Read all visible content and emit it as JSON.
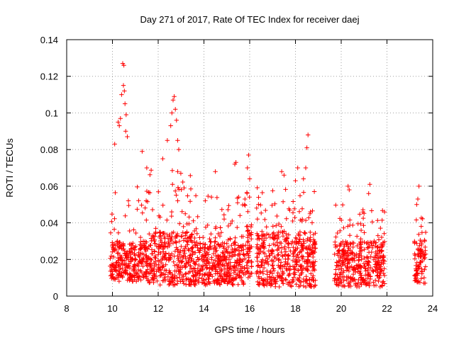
{
  "chart_data": {
    "type": "scatter",
    "title": "Day 271 of 2017, Rate Of TEC Index for receiver daej",
    "xlabel": "GPS time / hours",
    "ylabel": "ROTI / TECUs",
    "xlim": [
      8,
      24
    ],
    "ylim": [
      0,
      0.14
    ],
    "x_ticks": [
      "8",
      "10",
      "12",
      "14",
      "16",
      "18",
      "20",
      "22",
      "24"
    ],
    "y_ticks": [
      "0",
      "0.02",
      "0.04",
      "0.06",
      "0.08",
      "0.1",
      "0.12",
      "0.14"
    ],
    "grid": true,
    "marker": "+",
    "color": "#ff0000",
    "point_density": "dense, approximated from visible extent",
    "segments": [
      {
        "x": [
          9.9,
          11.6
        ],
        "y_base": [
          0.008,
          0.03
        ],
        "y_peak": 0.065
      },
      {
        "x": [
          11.6,
          13.6
        ],
        "y_base": [
          0.006,
          0.035
        ],
        "y_peak": 0.07
      },
      {
        "x": [
          13.6,
          15.8
        ],
        "y_base": [
          0.006,
          0.03
        ],
        "y_peak": 0.055
      },
      {
        "x": [
          15.8,
          16.1
        ],
        "y_base": [
          0.01,
          0.04
        ],
        "y_peak": 0.06
      },
      {
        "x": [
          16.3,
          18.9
        ],
        "y_base": [
          0.005,
          0.035
        ],
        "y_peak": 0.06
      },
      {
        "x": [
          19.7,
          21.9
        ],
        "y_base": [
          0.005,
          0.03
        ],
        "y_peak": 0.05
      },
      {
        "x": [
          23.2,
          23.7
        ],
        "y_base": [
          0.007,
          0.03
        ],
        "y_peak": 0.045
      }
    ],
    "highlights": [
      {
        "x": 10.25,
        "y": 0.095
      },
      {
        "x": 10.3,
        "y": 0.093
      },
      {
        "x": 10.35,
        "y": 0.097
      },
      {
        "x": 10.4,
        "y": 0.11
      },
      {
        "x": 10.45,
        "y": 0.127
      },
      {
        "x": 10.5,
        "y": 0.126
      },
      {
        "x": 10.48,
        "y": 0.115
      },
      {
        "x": 10.55,
        "y": 0.105
      },
      {
        "x": 10.6,
        "y": 0.099
      },
      {
        "x": 10.52,
        "y": 0.112
      },
      {
        "x": 10.58,
        "y": 0.09
      },
      {
        "x": 10.65,
        "y": 0.087
      },
      {
        "x": 12.4,
        "y": 0.085
      },
      {
        "x": 12.55,
        "y": 0.093
      },
      {
        "x": 12.6,
        "y": 0.1
      },
      {
        "x": 12.65,
        "y": 0.107
      },
      {
        "x": 12.7,
        "y": 0.109
      },
      {
        "x": 12.75,
        "y": 0.102
      },
      {
        "x": 12.8,
        "y": 0.096
      },
      {
        "x": 12.85,
        "y": 0.085
      },
      {
        "x": 12.9,
        "y": 0.08
      },
      {
        "x": 15.35,
        "y": 0.072
      },
      {
        "x": 15.4,
        "y": 0.073
      },
      {
        "x": 15.95,
        "y": 0.077
      },
      {
        "x": 15.9,
        "y": 0.07
      },
      {
        "x": 17.4,
        "y": 0.068
      },
      {
        "x": 17.5,
        "y": 0.066
      },
      {
        "x": 18.1,
        "y": 0.07
      },
      {
        "x": 18.55,
        "y": 0.088
      },
      {
        "x": 18.5,
        "y": 0.081
      },
      {
        "x": 18.45,
        "y": 0.07
      },
      {
        "x": 18.35,
        "y": 0.064
      },
      {
        "x": 20.3,
        "y": 0.06
      },
      {
        "x": 20.35,
        "y": 0.058
      },
      {
        "x": 21.25,
        "y": 0.061
      },
      {
        "x": 21.2,
        "y": 0.056
      },
      {
        "x": 23.4,
        "y": 0.06
      },
      {
        "x": 23.35,
        "y": 0.053
      },
      {
        "x": 23.3,
        "y": 0.05
      },
      {
        "x": 10.1,
        "y": 0.083
      },
      {
        "x": 11.3,
        "y": 0.079
      },
      {
        "x": 11.5,
        "y": 0.07
      },
      {
        "x": 12.2,
        "y": 0.075
      },
      {
        "x": 14.5,
        "y": 0.068
      },
      {
        "x": 16.0,
        "y": 0.064
      },
      {
        "x": 18.0,
        "y": 0.063
      }
    ]
  }
}
